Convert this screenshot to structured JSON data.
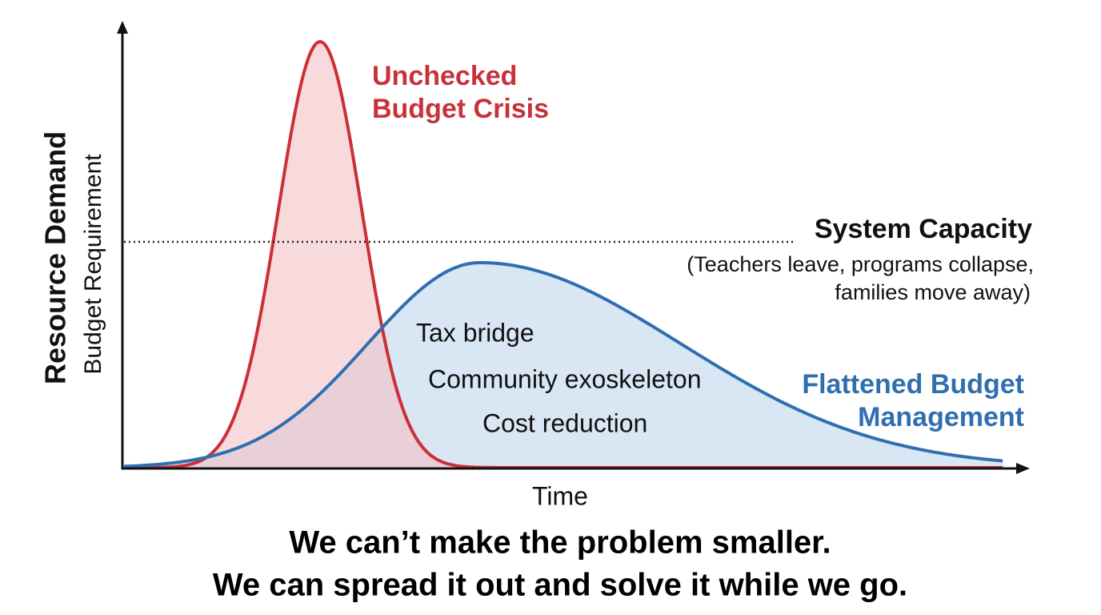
{
  "axes": {
    "y_title": "Resource Demand",
    "y_subtitle": "Budget Requirement",
    "x_title": "Time"
  },
  "crisis": {
    "label": [
      "Unchecked",
      "Budget Crisis"
    ]
  },
  "flattened": {
    "label": [
      "Flattened Budget",
      "Management"
    ]
  },
  "capacity": {
    "title": "System Capacity",
    "note": [
      "(Teachers leave, programs collapse,",
      "families move away)"
    ]
  },
  "strategies": [
    "Tax bridge",
    "Community exoskeleton",
    "Cost reduction"
  ],
  "caption": [
    "We can’t make the problem smaller.",
    "We can spread it out and solve it while we go."
  ]
}
